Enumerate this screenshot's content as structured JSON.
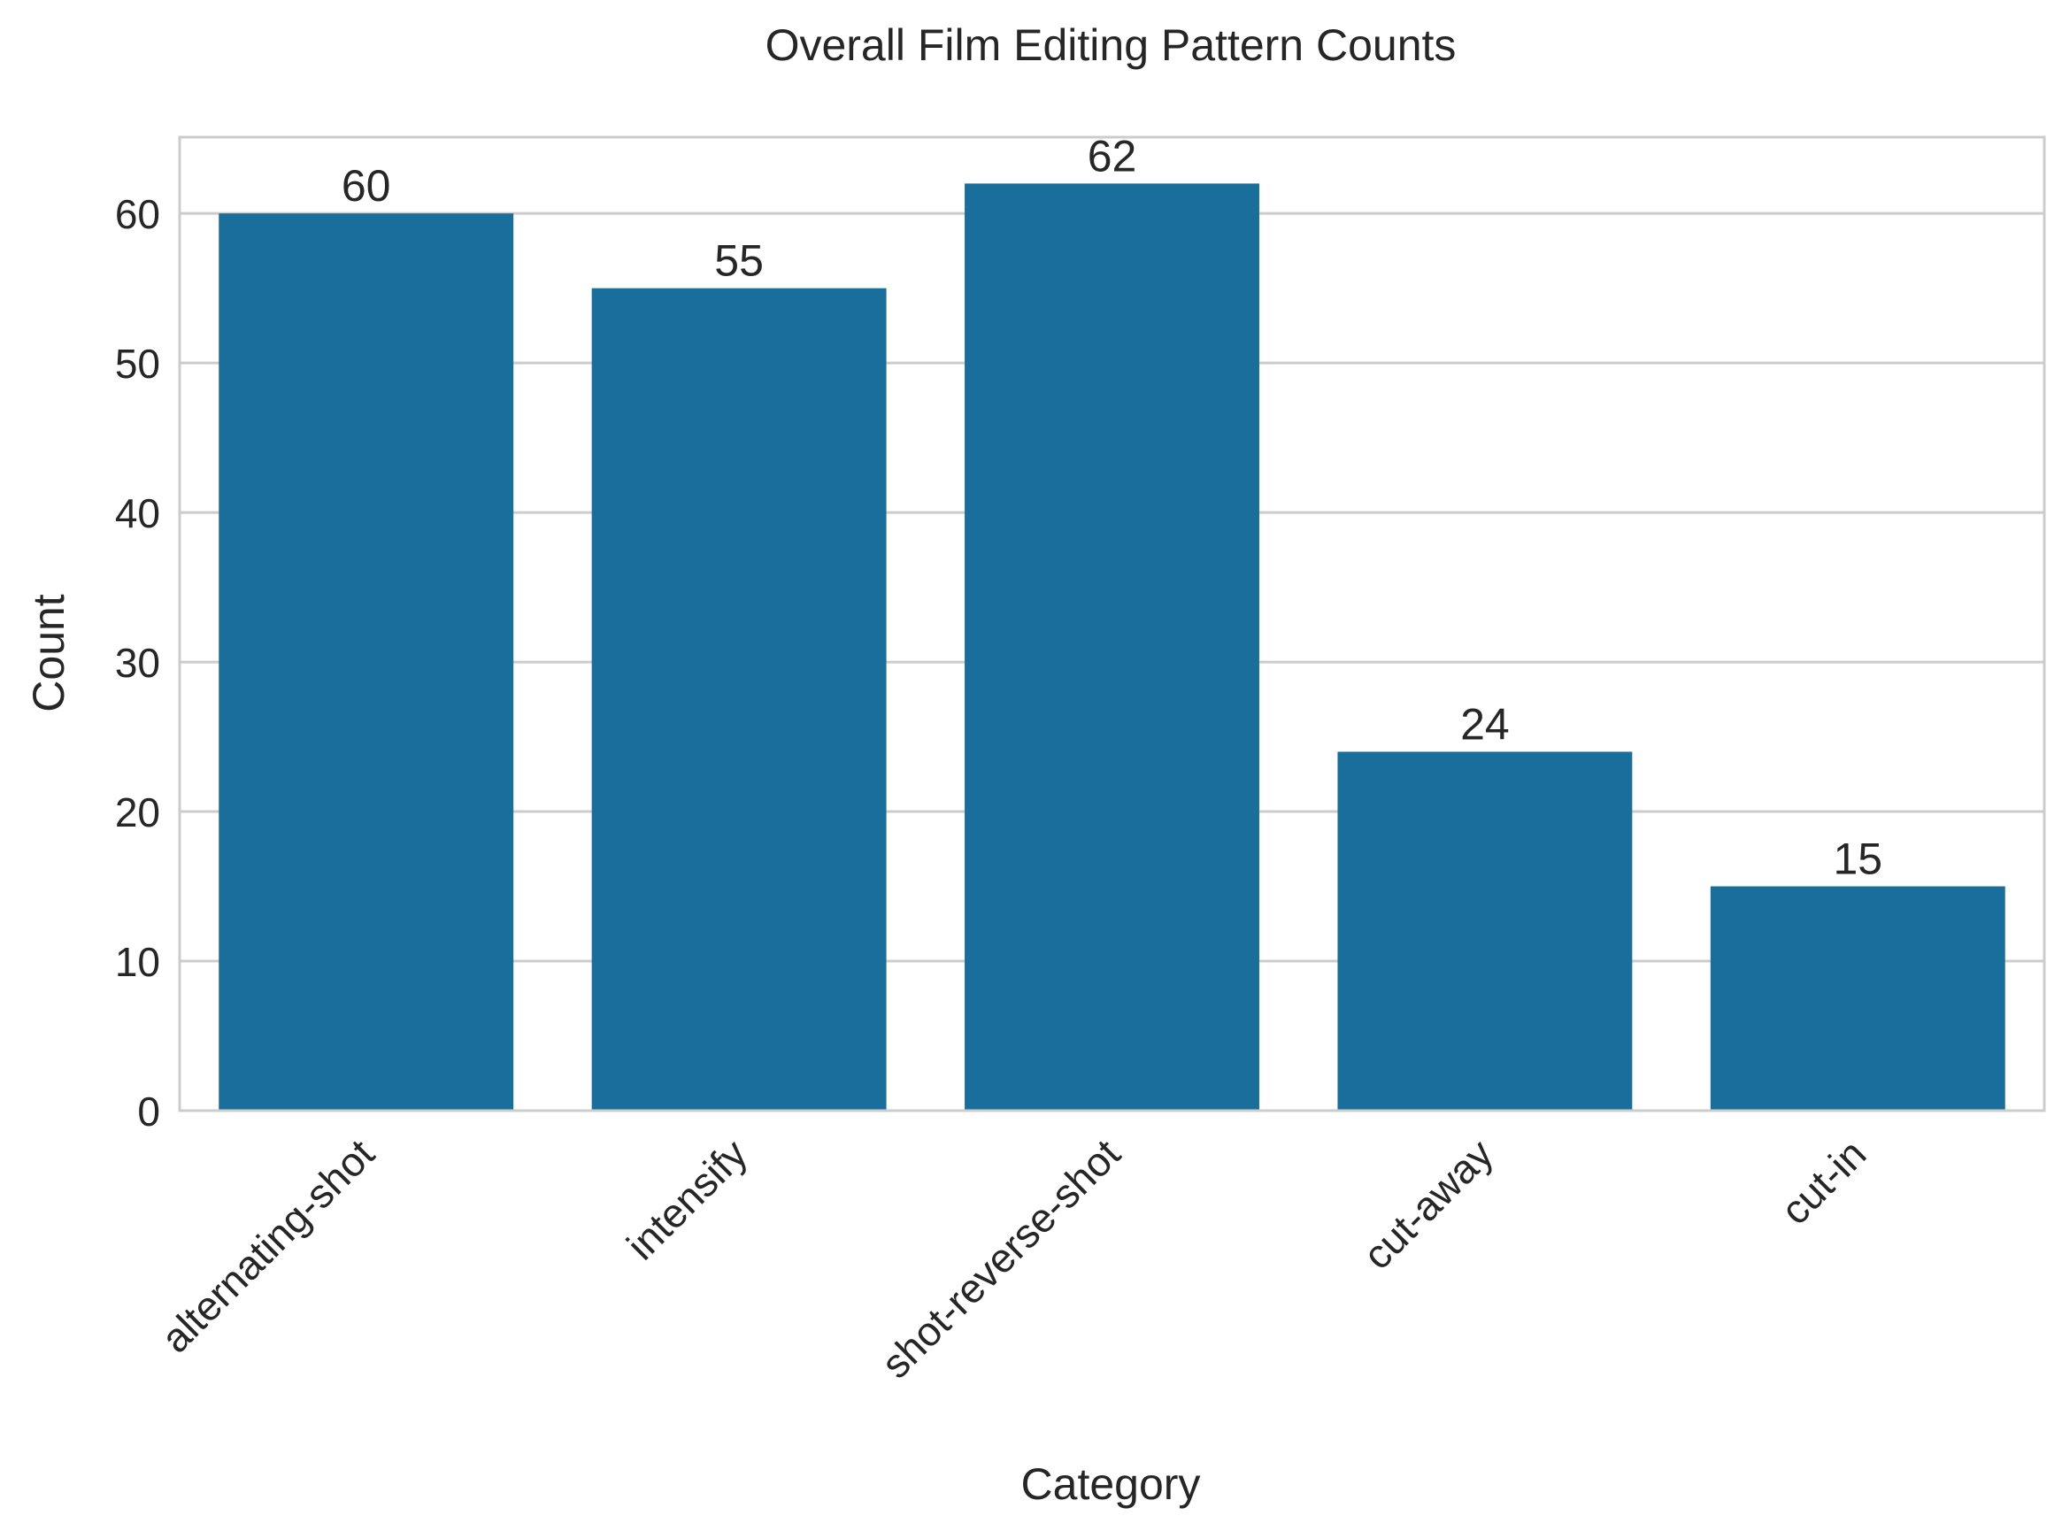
{
  "chart_data": {
    "type": "bar",
    "title": "Overall Film Editing Pattern Counts",
    "xlabel": "Category",
    "ylabel": "Count",
    "categories": [
      "alternating-shot",
      "intensify",
      "shot-reverse-shot",
      "cut-away",
      "cut-in"
    ],
    "values": [
      60,
      55,
      62,
      24,
      15
    ],
    "data_labels": [
      "60",
      "55",
      "62",
      "24",
      "15"
    ],
    "ylim": [
      0,
      65.1
    ],
    "yticks": [
      0,
      10,
      20,
      30,
      40,
      50,
      60
    ],
    "ytick_labels": [
      "0",
      "10",
      "20",
      "30",
      "40",
      "50",
      "60"
    ],
    "grid": "horizontal",
    "legend": "none",
    "bar_color": "#1a6e9b",
    "grid_color": "#cccccc",
    "spine_color": "#cccccc",
    "text_color": "#262626"
  }
}
